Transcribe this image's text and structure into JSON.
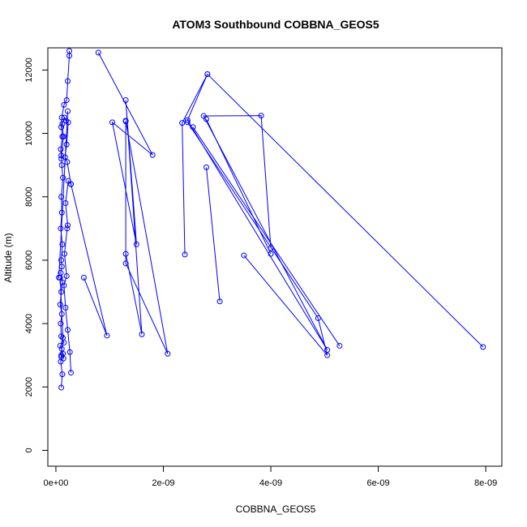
{
  "chart_data": {
    "type": "line",
    "title": "ATOM3 Southbound COBBNA_GEOS5",
    "xlabel": "COBBNA_GEOS5",
    "ylabel": "Altitude (m)",
    "xlim": [
      -1.5e-10,
      8.3e-09
    ],
    "ylim": [
      -500,
      12700
    ],
    "x_ticks": [
      {
        "value": 0,
        "label": "0e+00"
      },
      {
        "value": 2e-09,
        "label": "2e-09"
      },
      {
        "value": 4e-09,
        "label": "4e-09"
      },
      {
        "value": 6e-09,
        "label": "6e-09"
      },
      {
        "value": 8e-09,
        "label": "8e-09"
      }
    ],
    "y_ticks": [
      {
        "value": 0,
        "label": "0"
      },
      {
        "value": 2000,
        "label": "2000"
      },
      {
        "value": 4000,
        "label": "4000"
      },
      {
        "value": 6000,
        "label": "6000"
      },
      {
        "value": 8000,
        "label": "8000"
      },
      {
        "value": 10000,
        "label": "10000"
      },
      {
        "value": 12000,
        "label": "12000"
      }
    ],
    "grid": false,
    "markers": "open-circle",
    "color": "#0000ff",
    "series": [
      {
        "points": [
          [
            1e-10,
            1980
          ],
          [
            1.2e-10,
            2400
          ],
          [
            9e-11,
            2800
          ],
          [
            1e-10,
            2950
          ],
          [
            1.3e-10,
            3050
          ],
          [
            1.1e-10,
            3200
          ],
          [
            8e-11,
            3300
          ],
          [
            1.5e-10,
            3400
          ],
          [
            1e-10,
            3600
          ],
          [
            9e-11,
            4000
          ],
          [
            1.1e-10,
            4300
          ],
          [
            8e-11,
            4600
          ],
          [
            1e-10,
            5000
          ],
          [
            1.2e-10,
            5300
          ],
          [
            9e-11,
            5600
          ],
          [
            1.1e-10,
            5800
          ],
          [
            1e-10,
            6000
          ],
          [
            1.2e-10,
            6500
          ],
          [
            9e-11,
            7000
          ],
          [
            1.1e-10,
            7500
          ],
          [
            1e-10,
            8000
          ],
          [
            1.3e-10,
            8600
          ],
          [
            1.1e-10,
            9000
          ],
          [
            1e-10,
            9300
          ],
          [
            9e-11,
            9500
          ],
          [
            1.2e-10,
            9900
          ],
          [
            1e-10,
            10200
          ],
          [
            1.1e-10,
            10500
          ],
          [
            1.5e-10,
            10900
          ],
          [
            2e-10,
            11050
          ],
          [
            2.2e-10,
            11650
          ],
          [
            2.5e-10,
            12450
          ],
          [
            2.5e-10,
            12600
          ]
        ]
      },
      {
        "points": [
          [
            2.8e-10,
            2450
          ],
          [
            2.6e-10,
            3100
          ],
          [
            2.2e-10,
            3800
          ],
          [
            1.8e-10,
            4500
          ],
          [
            1.5e-10,
            5200
          ],
          [
            2e-10,
            5500
          ],
          [
            1.6e-10,
            6200
          ],
          [
            2.1e-10,
            7000
          ],
          [
            2.2e-10,
            7100
          ],
          [
            1.8e-10,
            7800
          ],
          [
            2.3e-10,
            8500
          ],
          [
            2.8e-10,
            8400
          ],
          [
            2.1e-10,
            9100
          ],
          [
            1.7e-10,
            9250
          ],
          [
            2e-10,
            9650
          ],
          [
            2.3e-10,
            10350
          ],
          [
            1.9e-10,
            10400
          ],
          [
            1.6e-10,
            10500
          ],
          [
            1.2e-10,
            10300
          ],
          [
            1.4e-10,
            9900
          ],
          [
            1e-10,
            9200
          ]
        ]
      },
      {
        "points": [
          [
            5.5e-11,
            5450
          ],
          [
            2.2e-10,
            10700
          ]
        ]
      },
      {
        "points": [
          [
            8e-11,
            5450
          ],
          [
            1.3e-10,
            3550
          ],
          [
            1e-10,
            3000
          ],
          [
            1.4e-10,
            2900
          ]
        ]
      },
      {
        "points": [
          [
            5.2e-10,
            5450
          ],
          [
            9.5e-10,
            3620
          ],
          [
            2.8e-10,
            8400
          ]
        ]
      },
      {
        "points": [
          [
            7.9e-10,
            12550
          ],
          [
            1.8e-09,
            9320
          ],
          [
            1.05e-09,
            10350
          ],
          [
            1.5e-09,
            6500
          ],
          [
            1.3e-09,
            11050
          ],
          [
            1.6e-09,
            3660
          ],
          [
            1.3e-09,
            6200
          ],
          [
            1.3e-09,
            10400
          ],
          [
            1.3e-09,
            5900
          ],
          [
            2.08e-09,
            3050
          ],
          [
            1.3e-09,
            10380
          ]
        ]
      },
      {
        "points": [
          [
            2.4e-09,
            6180
          ],
          [
            2.35e-09,
            10330
          ],
          [
            2.82e-09,
            11870
          ],
          [
            2.45e-09,
            10420
          ],
          [
            5.05e-09,
            3170
          ],
          [
            2.75e-09,
            10550
          ],
          [
            3.82e-09,
            10560
          ],
          [
            4e-09,
            6380
          ]
        ]
      },
      {
        "points": [
          [
            2.8e-09,
            8930
          ],
          [
            3.05e-09,
            4700
          ]
        ]
      },
      {
        "points": [
          [
            2.8e-09,
            10450
          ],
          [
            4e-09,
            6200
          ]
        ]
      },
      {
        "points": [
          [
            2.45e-09,
            10350
          ],
          [
            4.88e-09,
            4170
          ],
          [
            5.05e-09,
            3000
          ],
          [
            3.5e-09,
            6150
          ]
        ]
      },
      {
        "points": [
          [
            2.55e-09,
            10200
          ],
          [
            5.28e-09,
            3300
          ]
        ]
      },
      {
        "points": [
          [
            2.82e-09,
            11870
          ],
          [
            7.95e-09,
            3260
          ]
        ]
      }
    ]
  }
}
